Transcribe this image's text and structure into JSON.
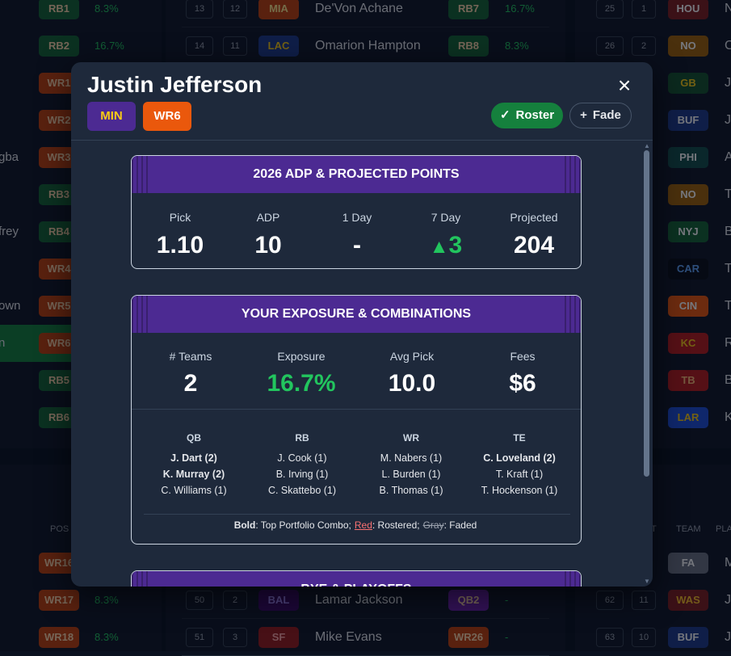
{
  "background": {
    "left_rows": [
      {
        "pos": "RB1",
        "pos_color": "#166534",
        "pct": "8.3%"
      },
      {
        "pos": "RB2",
        "pos_color": "#166534",
        "pct": "16.7%"
      },
      {
        "pos": "WR1",
        "pos_color": "#c2410c"
      },
      {
        "pos": "WR2",
        "pos_color": "#c2410c"
      },
      {
        "pos": "WR3",
        "pos_color": "#c2410c",
        "name": "gba"
      },
      {
        "pos": "RB3",
        "pos_color": "#166534"
      },
      {
        "pos": "RB4",
        "pos_color": "#166534",
        "name": "frey"
      },
      {
        "pos": "WR4",
        "pos_color": "#c2410c"
      },
      {
        "pos": "WR5",
        "pos_color": "#c2410c",
        "name": "own"
      },
      {
        "pos": "WR6",
        "pos_color": "#c2410c",
        "name": "n",
        "highlight": true
      },
      {
        "pos": "RB5",
        "pos_color": "#166534"
      },
      {
        "pos": "RB6",
        "pos_color": "#166534"
      }
    ],
    "middle_rows": [
      {
        "round": 13,
        "pick": 12,
        "team": "MIA",
        "team_color": "#c2410c",
        "team_text": "#fde68a",
        "name": "De'Von Achane",
        "pos": "RB7",
        "pos_color": "#166534",
        "pct": "16.7%"
      },
      {
        "round": 14,
        "pick": 11,
        "team": "LAC",
        "team_color": "#1e3a8a",
        "team_text": "#facc15",
        "name": "Omarion Hampton",
        "pos": "RB8",
        "pos_color": "#166534",
        "pct": "8.3%"
      }
    ],
    "right_rows": [
      {
        "round": 25,
        "pick": 1,
        "team": "HOU",
        "team_color": "#7f1d1d",
        "name": "N"
      },
      {
        "round": 26,
        "pick": 2,
        "team": "NO",
        "team_color": "#a16207",
        "name": "C"
      },
      {
        "team": "GB",
        "team_color": "#14532d",
        "team_text": "#facc15",
        "name": "J"
      },
      {
        "team": "BUF",
        "team_color": "#1e3a8a",
        "name": "J"
      },
      {
        "team": "PHI",
        "team_color": "#134e4a",
        "name": "A"
      },
      {
        "team": "NO",
        "team_color": "#a16207",
        "name": "T"
      },
      {
        "team": "NYJ",
        "team_color": "#166534",
        "name": "B"
      },
      {
        "team": "CAR",
        "team_color": "#0b0f17",
        "team_text": "#60a5fa",
        "name": "T"
      },
      {
        "team": "CIN",
        "team_color": "#ea580c",
        "name": "T"
      },
      {
        "team": "KC",
        "team_color": "#b91c1c",
        "team_text": "#facc15",
        "name": "R"
      },
      {
        "team": "TB",
        "team_color": "#b91c1c",
        "team_text": "#fdba74",
        "name": "B"
      },
      {
        "team": "LAR",
        "team_color": "#1d4ed8",
        "team_text": "#facc15",
        "name": "K"
      }
    ],
    "lower_left_header": "POS",
    "lower_left_rows": [
      {
        "pos": "WR16",
        "pos_color": "#c2410c"
      },
      {
        "pos": "WR17",
        "pos_color": "#c2410c",
        "pct": "8.3%"
      },
      {
        "pos": "WR18",
        "pos_color": "#c2410c",
        "pct": "8.3%"
      }
    ],
    "lower_middle_rows": [
      {
        "round": 50,
        "pick": 2,
        "team": "BAL",
        "team_color": "#3b0764",
        "team_text": "#a78bfa",
        "name": "Lamar Jackson",
        "pos": "QB2",
        "pos_color": "#6b21a8",
        "pct": "-"
      },
      {
        "round": 51,
        "pick": 3,
        "team": "SF",
        "team_color": "#991b1b",
        "team_text": "#fca5a5",
        "name": "Mike Evans",
        "pos": "WR26",
        "pos_color": "#c2410c",
        "pct": "-"
      }
    ],
    "lower_right_headers": [
      "T",
      "TEAM",
      "PLA"
    ],
    "lower_right_rows": [
      {
        "team": "FA",
        "team_color": "#6b7280",
        "name": "M"
      },
      {
        "round": 62,
        "pick": 11,
        "team": "WAS",
        "team_color": "#7f1d1d",
        "team_text": "#fbbf24",
        "name": "J"
      },
      {
        "round": 63,
        "pick": 10,
        "team": "BUF",
        "team_color": "#1e3a8a",
        "name": "J"
      }
    ]
  },
  "modal": {
    "title": "Justin Jefferson",
    "badges": [
      {
        "text": "MIN",
        "color": "#4c2a92",
        "text_color": "#facc15"
      },
      {
        "text": "WR6",
        "color": "#ea580c",
        "text_color": "#ffffff"
      }
    ],
    "close": "×",
    "actions": [
      {
        "icon": "✓",
        "label": "Roster",
        "active": true
      },
      {
        "icon": "+",
        "label": "Fade"
      }
    ],
    "sections": [
      {
        "title": "2026 ADP & PROJECTED POINTS",
        "stats": [
          {
            "label": "Pick",
            "value": "1.10"
          },
          {
            "label": "ADP",
            "value": 10
          },
          {
            "label": "1 Day",
            "value": "-"
          },
          {
            "label": "7 Day",
            "value": 3,
            "trend": "▲",
            "color": "#22c55e"
          },
          {
            "label": "Projected",
            "value": 204
          }
        ]
      },
      {
        "title": "YOUR EXPOSURE & COMBINATIONS",
        "stats": [
          {
            "label": "# Teams",
            "value": 2
          },
          {
            "label": "Exposure",
            "value": "16.7%",
            "color": "#22c55e"
          },
          {
            "label": "Avg Pick",
            "value": "10.0"
          },
          {
            "label": "Fees",
            "value": "$6"
          }
        ],
        "combos": [
          {
            "heading": "QB",
            "entries": [
              {
                "text": "J. Dart (2)",
                "bold": true
              },
              {
                "text": "K. Murray (2)",
                "bold": true
              },
              {
                "text": "C. Williams (1)"
              }
            ]
          },
          {
            "heading": "RB",
            "entries": [
              {
                "text": "J. Cook (1)"
              },
              {
                "text": "B. Irving (1)"
              },
              {
                "text": "C. Skattebo (1)"
              }
            ]
          },
          {
            "heading": "WR",
            "entries": [
              {
                "text": "M. Nabers (1)"
              },
              {
                "text": "L. Burden (1)"
              },
              {
                "text": "B. Thomas (1)"
              }
            ]
          },
          {
            "heading": "TE",
            "entries": [
              {
                "text": "C. Loveland (2)",
                "bold": true
              },
              {
                "text": "T. Kraft (1)"
              },
              {
                "text": "T. Hockenson (1)"
              }
            ]
          }
        ],
        "legend": [
          {
            "key": "Bold",
            "text": ": Top Portfolio Combo;",
            "style": "bold"
          },
          {
            "key": "Red",
            "text": ": Rostered;",
            "style": "rostered"
          },
          {
            "key": "Gray",
            "text": ": Faded",
            "style": "faded"
          }
        ]
      },
      {
        "title": "BYE & PLAYOFFS"
      }
    ]
  }
}
